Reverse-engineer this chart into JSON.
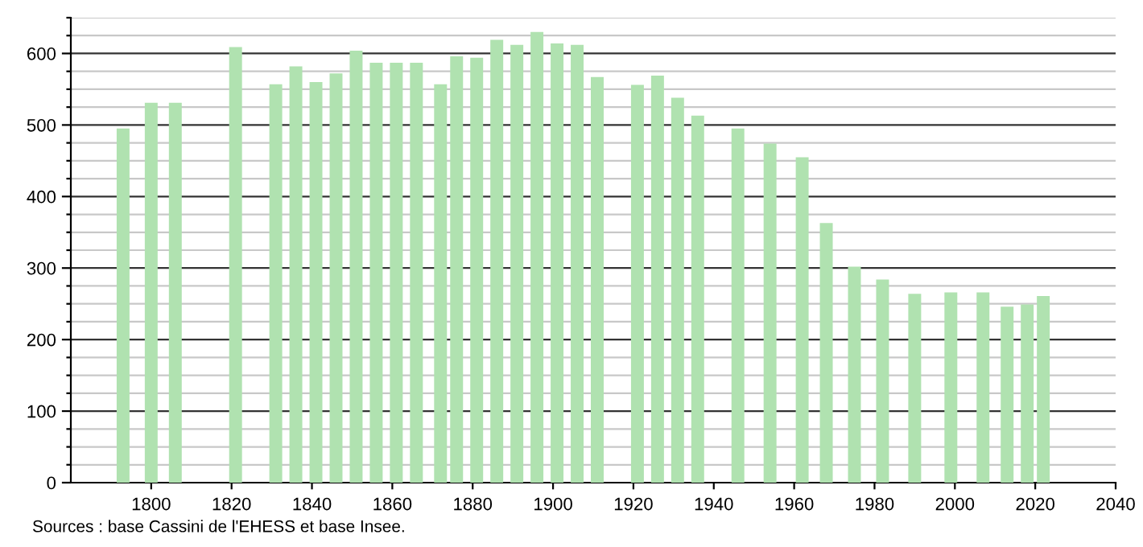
{
  "chart_data": {
    "type": "bar",
    "color": "#b0e2b0",
    "x": [
      1793,
      1800,
      1806,
      1821,
      1831,
      1836,
      1841,
      1846,
      1851,
      1856,
      1861,
      1866,
      1872,
      1876,
      1881,
      1886,
      1891,
      1896,
      1901,
      1906,
      1911,
      1921,
      1926,
      1931,
      1936,
      1946,
      1954,
      1962,
      1968,
      1975,
      1982,
      1990,
      1999,
      2007,
      2013,
      2018,
      2022
    ],
    "values": [
      495,
      531,
      531,
      609,
      557,
      582,
      560,
      572,
      604,
      587,
      587,
      587,
      557,
      596,
      594,
      619,
      612,
      630,
      614,
      612,
      567,
      556,
      569,
      538,
      513,
      495,
      474,
      455,
      363,
      302,
      284,
      264,
      266,
      266,
      246,
      249,
      261
    ],
    "xlim": [
      1780,
      2040
    ],
    "xticks": [
      1800,
      1820,
      1840,
      1860,
      1880,
      1900,
      1920,
      1940,
      1960,
      1980,
      2000,
      2020,
      2040
    ],
    "ylim": [
      0,
      650
    ],
    "yticks": [
      0,
      {
        "value": 25,
        "label": null
      },
      {
        "value": 50,
        "label": null
      },
      {
        "value": 75,
        "label": null
      },
      100,
      {
        "value": 125,
        "label": null
      },
      {
        "value": 150,
        "label": null
      },
      {
        "value": 175,
        "label": null
      },
      200,
      {
        "value": 225,
        "label": null
      },
      {
        "value": 250,
        "label": null
      },
      {
        "value": 275,
        "label": null
      },
      300,
      {
        "value": 325,
        "label": null
      },
      {
        "value": 350,
        "label": null
      },
      {
        "value": 375,
        "label": null
      },
      400,
      {
        "value": 425,
        "label": null
      },
      {
        "value": 450,
        "label": null
      },
      {
        "value": 475,
        "label": null
      },
      500,
      {
        "value": 525,
        "label": null
      },
      {
        "value": 550,
        "label": null
      },
      {
        "value": 575,
        "label": null
      },
      600,
      {
        "value": 625,
        "label": null
      },
      {
        "value": 650,
        "label": null
      }
    ],
    "grid": "y",
    "annotations": [
      "Sources : base Cassini de l'EHESS et base Insee."
    ]
  }
}
